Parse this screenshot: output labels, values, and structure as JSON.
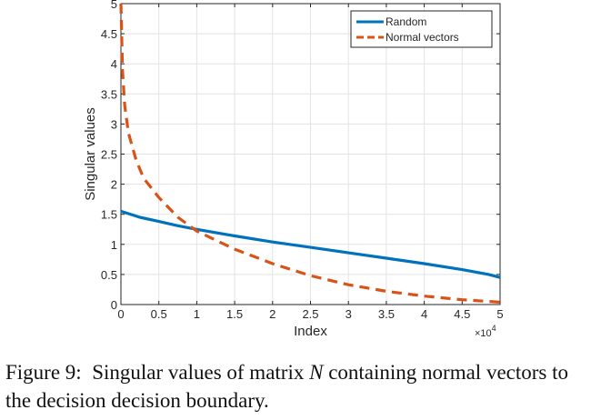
{
  "chart_data": {
    "type": "line",
    "xlabel": "Index",
    "ylabel": "Singular values",
    "x_exponent_label": "×10",
    "x_exponent": "4",
    "xlim": [
      0,
      5
    ],
    "ylim": [
      0,
      5
    ],
    "x_ticks": [
      "0",
      "0.5",
      "1",
      "1.5",
      "2",
      "2.5",
      "3",
      "3.5",
      "4",
      "4.5",
      "5"
    ],
    "y_ticks": [
      "0",
      "0.5",
      "1",
      "1.5",
      "2",
      "2.5",
      "3",
      "3.5",
      "4",
      "4.5",
      "5"
    ],
    "grid": true,
    "legend_position": "top-right",
    "series": [
      {
        "name": "Random",
        "style": "solid",
        "color": "#0072bd",
        "x": [
          0,
          0.25,
          0.5,
          0.75,
          1.0,
          1.5,
          2.0,
          2.5,
          3.0,
          3.5,
          4.0,
          4.5,
          4.85,
          5.0
        ],
        "y": [
          1.55,
          1.45,
          1.38,
          1.31,
          1.25,
          1.14,
          1.04,
          0.95,
          0.86,
          0.77,
          0.68,
          0.58,
          0.5,
          0.45
        ]
      },
      {
        "name": "Normal vectors",
        "style": "dashed",
        "color": "#d95319",
        "x": [
          0,
          0.01,
          0.02,
          0.05,
          0.1,
          0.2,
          0.3,
          0.5,
          0.75,
          1.0,
          1.5,
          2.0,
          2.5,
          3.0,
          3.5,
          4.0,
          4.5,
          5.0
        ],
        "y": [
          5.0,
          4.5,
          3.9,
          3.3,
          2.85,
          2.4,
          2.1,
          1.78,
          1.45,
          1.22,
          0.92,
          0.68,
          0.48,
          0.33,
          0.22,
          0.14,
          0.08,
          0.04
        ]
      }
    ]
  },
  "caption": {
    "label": "Figure 9:",
    "text_before": "Singular values of matrix ",
    "variable": "N",
    "text_after": " containing normal vectors to the decision decision boundary."
  }
}
